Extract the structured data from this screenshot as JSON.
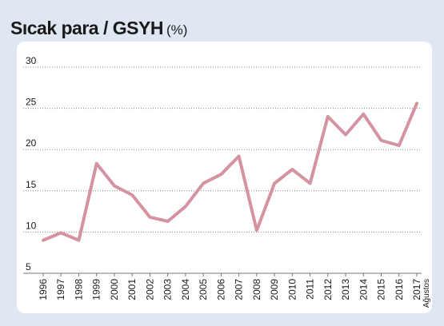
{
  "title": {
    "main": "Sıcak para / GSYH",
    "unit": "(%)"
  },
  "colors": {
    "background": "#dfe8f2",
    "panel": "#ffffff",
    "line": "#d4939f",
    "grid": "#888888"
  },
  "chart_data": {
    "type": "line",
    "title": "Sıcak para / GSYH",
    "unit": "(%)",
    "xlabel": "",
    "ylabel": "",
    "ylim": [
      5,
      30
    ],
    "yticks": [
      5,
      10,
      15,
      20,
      25,
      30
    ],
    "grid": "horizontal-dotted",
    "categories": [
      "1996",
      "1997",
      "1998",
      "1999",
      "2000",
      "2001",
      "2002",
      "2003",
      "2004",
      "2005",
      "2006",
      "2007",
      "2008",
      "2009",
      "2010",
      "2011",
      "2012",
      "2013",
      "2014",
      "2015",
      "2016",
      "2017"
    ],
    "last_category_note": "Ağustos",
    "series": [
      {
        "values": [
          9.0,
          9.9,
          9.0,
          18.3,
          15.6,
          14.5,
          11.8,
          11.3,
          13.1,
          15.9,
          17.0,
          19.2,
          10.2,
          15.9,
          17.6,
          15.9,
          24.0,
          21.8,
          24.3,
          21.1,
          20.5,
          25.6
        ]
      }
    ]
  }
}
